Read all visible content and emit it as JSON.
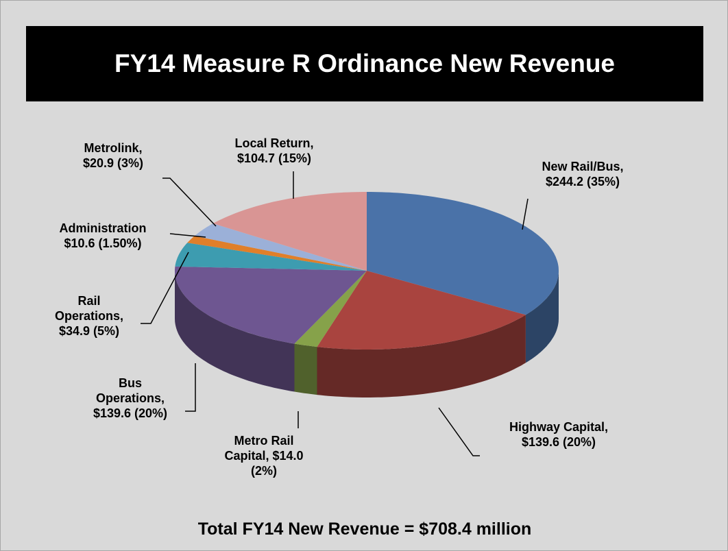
{
  "chart_data": {
    "type": "pie3d",
    "title": "FY14 Measure R Ordinance New Revenue",
    "subtitle": "Total FY14 New Revenue = $708.4 million",
    "categories": [
      "New Rail/Bus,",
      "Highway Capital,",
      "Metro Rail Capital,",
      "Bus Operations,",
      "Rail Operations,",
      "Administration",
      "Metrolink,",
      "Local Return,"
    ],
    "values": [
      244.2,
      139.6,
      14.0,
      139.6,
      34.9,
      10.6,
      20.9,
      104.7
    ],
    "value_labels": [
      "$244.2 (35%)",
      "$139.6 (20%)",
      "$14.0 (2%)",
      "$139.6 (20%)",
      "$34.9 (5%)",
      "$10.6 (1.50%)",
      "$20.9 (3%)",
      "$104.7 (15%)"
    ],
    "colors": [
      "#4a72a8",
      "#a9443f",
      "#86a24a",
      "#6e5691",
      "#3d9cb0",
      "#e07f2a",
      "#9bb0d8",
      "#d99594"
    ]
  }
}
